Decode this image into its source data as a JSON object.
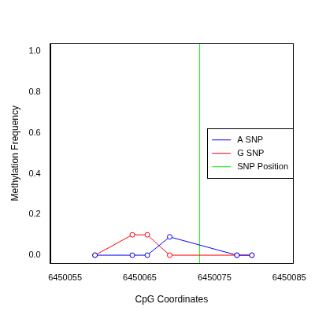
{
  "chart_data": {
    "type": "line",
    "x_label": "CpG Coordinates",
    "y_label": "Methylation Frequency",
    "x": [
      6450059,
      6450064,
      6450066,
      6450069,
      6450078,
      6450080
    ],
    "series": [
      {
        "name": "A SNP",
        "color": "#0000ff",
        "marker": "circle",
        "line_style": "solid",
        "values": [
          0,
          0,
          0,
          0.09,
          0,
          0
        ]
      },
      {
        "name": "G SNP",
        "color": "#ff0000",
        "marker": "circle",
        "line_style": "solid",
        "values": [
          0,
          0.1,
          0.1,
          0,
          0,
          0
        ]
      }
    ],
    "snp_position": {
      "name": "SNP Position",
      "color": "#00ff00",
      "value": 6450073
    },
    "xlim": [
      6450053,
      6450085.5
    ],
    "xticks": [
      6450055,
      6450065,
      6450075,
      6450085
    ],
    "ylim": [
      -0.04,
      1.04
    ],
    "yticks": [
      {
        "value": 0,
        "label": "0.0"
      },
      {
        "value": 0.2,
        "label": "0.2"
      },
      {
        "value": 0.4,
        "label": "0.4"
      },
      {
        "value": 0.6,
        "label": "0.6"
      },
      {
        "value": 0.8,
        "label": "0.8"
      },
      {
        "value": 1,
        "label": "1.0"
      }
    ],
    "grid": false,
    "legend": "right"
  }
}
